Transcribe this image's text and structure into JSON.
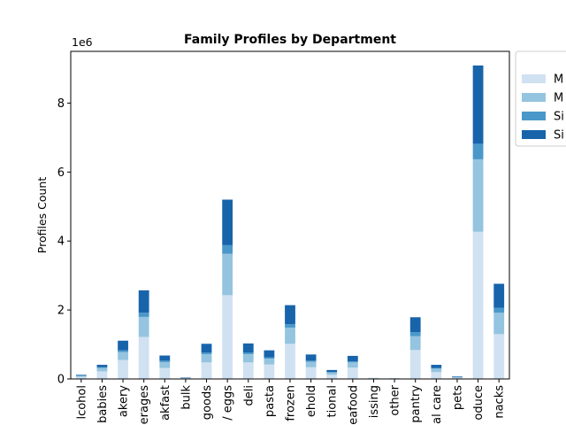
{
  "chart_data": {
    "type": "bar",
    "stacked": true,
    "title": "Family Profiles by Department",
    "xlabel": "",
    "ylabel": "Profiles Count",
    "y_scale_label": "1e6",
    "ylim": [
      0,
      9.5
    ],
    "y_ticks": [
      "0",
      "2",
      "4",
      "6",
      "8"
    ],
    "categories": [
      "alcohol",
      "babies",
      "bakery",
      "beverages",
      "breakfast",
      "bulk",
      "canned goods",
      "dairy eggs",
      "deli",
      "dry goods pasta",
      "frozen",
      "household",
      "international",
      "meat seafood",
      "missing",
      "other",
      "pantry",
      "personal care",
      "pets",
      "produce",
      "snacks"
    ],
    "visible_tick_labels": [
      "lcohol",
      "babies",
      "akery",
      "erages",
      "akfast",
      "bulk",
      "goods",
      "/ eggs",
      "deli",
      "pasta",
      "frozen",
      "ehold",
      "tional",
      "eafood",
      "issing",
      "other",
      "pantry",
      "al care",
      "pets",
      "oduce",
      "nacks"
    ],
    "series": [
      {
        "name": "M",
        "color": "#d0e1f2",
        "values": [
          0.06,
          0.22,
          0.55,
          1.22,
          0.32,
          0.02,
          0.48,
          2.43,
          0.48,
          0.42,
          1.02,
          0.34,
          0.12,
          0.33,
          0.02,
          0.01,
          0.84,
          0.2,
          0.03,
          4.27,
          1.3
        ]
      },
      {
        "name": "M",
        "color": "#94c4df",
        "values": [
          0.03,
          0.1,
          0.23,
          0.58,
          0.17,
          0.01,
          0.24,
          1.2,
          0.24,
          0.17,
          0.47,
          0.16,
          0.07,
          0.15,
          0.01,
          0.01,
          0.4,
          0.1,
          0.02,
          2.1,
          0.62
        ]
      },
      {
        "name": "Si",
        "color": "#4a98c9",
        "values": [
          0.01,
          0.02,
          0.05,
          0.12,
          0.04,
          0.0,
          0.05,
          0.25,
          0.05,
          0.04,
          0.1,
          0.03,
          0.01,
          0.03,
          0.0,
          0.0,
          0.12,
          0.02,
          0.0,
          0.45,
          0.14
        ]
      },
      {
        "name": "Si",
        "color": "#1764ab",
        "values": [
          0.02,
          0.07,
          0.28,
          0.65,
          0.15,
          0.01,
          0.25,
          1.32,
          0.26,
          0.2,
          0.55,
          0.18,
          0.06,
          0.16,
          0.0,
          0.0,
          0.43,
          0.09,
          0.02,
          2.27,
          0.7
        ]
      }
    ],
    "legend": {
      "placement": "right-outside"
    }
  }
}
